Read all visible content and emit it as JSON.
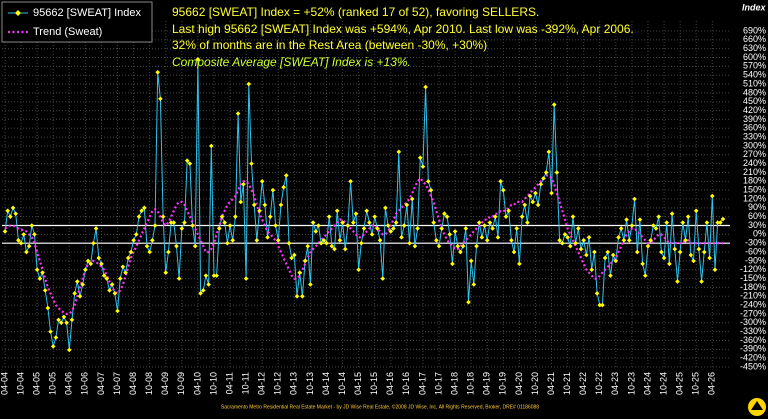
{
  "chart_data": {
    "type": "line",
    "title_lines": [
      "95662 [SWEAT] Index = +52% (ranked 17 of 52), favoring SELLERS.",
      "Last high 95662 [SWEAT] Index was +594%, Apr 2010. Last low was -392%, Apr 2006.",
      "32% of months are in the Rest Area (between -30%, +30%)"
    ],
    "composite_note": "Composite Average [SWEAT] Index is +13%.",
    "y_axis_label": "Index",
    "footer": "Sacramento Metro Residential Real Estate Market - by JD Wise Real Estate, ©2008 JD Wise, Inc, All Rights Reserved, Broker, DRE# 01186088",
    "rest_area": [
      -30,
      30
    ],
    "grid": true,
    "legend": "upper left",
    "categories": [
      "04-04",
      null,
      null,
      null,
      null,
      null,
      "10-04",
      null,
      null,
      null,
      null,
      null,
      "04-05",
      null,
      null,
      null,
      null,
      null,
      "10-05",
      null,
      null,
      null,
      null,
      null,
      "04-06",
      null,
      null,
      null,
      null,
      null,
      "10-06",
      null,
      null,
      null,
      null,
      null,
      "04-07",
      null,
      null,
      null,
      null,
      null,
      "10-07",
      null,
      null,
      null,
      null,
      null,
      "04-08",
      null,
      null,
      null,
      null,
      null,
      "10-08",
      null,
      null,
      null,
      null,
      null,
      "04-09",
      null,
      null,
      null,
      null,
      null,
      "10-09",
      null,
      null,
      null,
      null,
      null,
      "04-10",
      null,
      null,
      null,
      null,
      null,
      "10-10",
      null,
      null,
      null,
      null,
      null,
      "04-11",
      null,
      null,
      null,
      null,
      null,
      "10-11",
      null,
      null,
      null,
      null,
      null,
      "04-12",
      null,
      null,
      null,
      null,
      null,
      "10-12",
      null,
      null,
      null,
      null,
      null,
      "04-13",
      null,
      null,
      null,
      null,
      null,
      "10-13",
      null,
      null,
      null,
      null,
      null,
      "04-14",
      null,
      null,
      null,
      null,
      null,
      "10-14",
      null,
      null,
      null,
      null,
      null,
      "04-15",
      null,
      null,
      null,
      null,
      null,
      "10-15",
      null,
      null,
      null,
      null,
      null,
      "04-16",
      null,
      null,
      null,
      null,
      null,
      "10-16",
      null,
      null,
      null,
      null,
      null,
      "04-17",
      null,
      null,
      null,
      null,
      null,
      "10-17",
      null,
      null,
      null,
      null,
      null,
      "04-18",
      null,
      null,
      null,
      null,
      null,
      "10-18",
      null,
      null,
      null,
      null,
      null,
      "04-19",
      null,
      null,
      null,
      null,
      null,
      "10-19",
      null,
      null,
      null,
      null,
      null,
      "04-20",
      null,
      null,
      null,
      null,
      null,
      "10-20",
      null,
      null,
      null,
      null,
      null,
      "04-21",
      null,
      null,
      null,
      null,
      null,
      "10-21",
      null,
      null,
      null,
      null,
      null,
      "04-22",
      null,
      null,
      null,
      null,
      null,
      "10-22",
      null,
      null,
      null,
      null,
      null,
      "04-23",
      null,
      null,
      null,
      null,
      null,
      "10-23",
      null,
      null,
      null,
      null,
      null,
      "04-24",
      null,
      null,
      null,
      null,
      null,
      "10-24",
      null,
      null,
      null,
      null,
      null,
      "04-25",
      null,
      null,
      null,
      null,
      null,
      "10-25",
      null,
      null,
      null,
      null,
      null,
      "04-26",
      null,
      null,
      null,
      null
    ],
    "series": [
      {
        "name": "95662 [SWEAT] Index",
        "color": "#2fc4ee",
        "marker_color": "#ffff00",
        "values": [
          10,
          80,
          60,
          90,
          70,
          -20,
          -30,
          0,
          -60,
          -40,
          30,
          0,
          -120,
          -150,
          -130,
          -190,
          -250,
          -330,
          -380,
          -350,
          -290,
          -300,
          -280,
          -300,
          -392,
          -290,
          -200,
          -160,
          -210,
          -170,
          -120,
          -90,
          -100,
          -30,
          20,
          -80,
          -100,
          -140,
          -150,
          -190,
          -170,
          -200,
          -260,
          -150,
          -110,
          -130,
          -80,
          -60,
          -20,
          0,
          60,
          80,
          90,
          -40,
          -60,
          -20,
          30,
          550,
          460,
          60,
          -130,
          -60,
          40,
          40,
          -40,
          -150,
          20,
          40,
          250,
          240,
          30,
          -40,
          594,
          -200,
          -190,
          -140,
          -170,
          300,
          -140,
          -140,
          20,
          60,
          40,
          -30,
          30,
          -20,
          60,
          410,
          110,
          170,
          -150,
          510,
          240,
          100,
          -20,
          80,
          180,
          100,
          -10,
          60,
          150,
          30,
          -20,
          100,
          160,
          200,
          -30,
          -80,
          -70,
          -210,
          -130,
          -210,
          -90,
          -40,
          -170,
          40,
          10,
          30,
          -30,
          -20,
          -30,
          60,
          -40,
          -50,
          80,
          -20,
          40,
          -50,
          30,
          180,
          40,
          70,
          -120,
          -30,
          20,
          80,
          40,
          0,
          60,
          20,
          -20,
          -150,
          90,
          30,
          10,
          20,
          40,
          280,
          -10,
          30,
          100,
          -30,
          120,
          -40,
          20,
          260,
          230,
          500,
          180,
          150,
          40,
          -20,
          -40,
          20,
          70,
          60,
          0,
          -100,
          10,
          -40,
          -60,
          -40,
          20,
          -230,
          -90,
          -170,
          -40,
          40,
          -10,
          30,
          -20,
          40,
          20,
          60,
          -10,
          180,
          150,
          60,
          80,
          -20,
          -60,
          20,
          -100,
          60,
          100,
          40,
          130,
          110,
          140,
          100,
          170,
          190,
          210,
          280,
          140,
          440,
          210,
          -20,
          -30,
          0,
          -10,
          -40,
          60,
          -30,
          20,
          -50,
          -20,
          -70,
          -10,
          -120,
          -60,
          -200,
          -240,
          -240,
          -80,
          -60,
          -140,
          -70,
          -90,
          -10,
          20,
          -20,
          50,
          -20,
          30,
          120,
          -60,
          50,
          -100,
          -140,
          -40,
          -20,
          30,
          20,
          60,
          -60,
          -80,
          40,
          -100,
          70,
          -50,
          -160,
          -60,
          40,
          -20,
          60,
          -70,
          -90,
          80,
          -50,
          -160,
          -60,
          40,
          -80,
          130,
          -120,
          40,
          40,
          52
        ]
      },
      {
        "name": "Trend (Sweat)",
        "color": "#ff33ff",
        "dotted": true,
        "values": [
          20,
          25,
          30,
          30,
          25,
          20,
          15,
          15,
          10,
          0,
          -10,
          -30,
          -60,
          -90,
          -120,
          -150,
          -180,
          -200,
          -220,
          -240,
          -250,
          -260,
          -265,
          -270,
          -270,
          -260,
          -240,
          -210,
          -180,
          -150,
          -120,
          -100,
          -90,
          -90,
          -95,
          -100,
          -110,
          -120,
          -140,
          -160,
          -180,
          -195,
          -200,
          -190,
          -170,
          -140,
          -110,
          -80,
          -60,
          -40,
          -20,
          0,
          20,
          40,
          60,
          80,
          85,
          80,
          60,
          40,
          30,
          40,
          60,
          80,
          100,
          110,
          110,
          100,
          80,
          60,
          40,
          20,
          0,
          -20,
          -40,
          -60,
          -60,
          -50,
          -30,
          0,
          30,
          60,
          80,
          100,
          110,
          120,
          130,
          150,
          170,
          180,
          180,
          170,
          150,
          130,
          100,
          70,
          50,
          30,
          10,
          0,
          -10,
          -20,
          -40,
          -60,
          -80,
          -100,
          -120,
          -140,
          -150,
          -150,
          -140,
          -120,
          -100,
          -80,
          -60,
          -50,
          -40,
          -30,
          -20,
          -10,
          0,
          10,
          20,
          30,
          40,
          50,
          50,
          40,
          30,
          20,
          10,
          0,
          -10,
          -10,
          0,
          10,
          20,
          30,
          30,
          20,
          10,
          0,
          0,
          10,
          30,
          50,
          70,
          80,
          90,
          100,
          110,
          120,
          140,
          160,
          180,
          190,
          180,
          170,
          150,
          130,
          110,
          80,
          50,
          20,
          0,
          -20,
          -30,
          -40,
          -50,
          -50,
          -40,
          -30,
          -20,
          -10,
          0,
          10,
          20,
          30,
          40,
          50,
          50,
          60,
          60,
          70,
          70,
          80,
          80,
          80,
          90,
          100,
          100,
          110,
          110,
          110,
          120,
          130,
          140,
          150,
          160,
          170,
          180,
          190,
          200,
          200,
          190,
          170,
          140,
          110,
          80,
          50,
          20,
          0,
          -20,
          -40,
          -60,
          -80,
          -100,
          -120,
          -130,
          -140,
          -150,
          -150,
          -140,
          -130,
          -120,
          -110,
          -100,
          -90,
          -80,
          -60,
          -40,
          -20,
          0,
          10,
          20,
          20,
          10,
          0,
          -10,
          -20,
          -30,
          -30,
          -20,
          -10,
          0,
          0,
          -10,
          -20,
          -30,
          -30,
          -30,
          -30,
          -30,
          -30,
          -20,
          -20,
          -30,
          -30,
          -30,
          -30,
          -30,
          -30,
          -30,
          -30,
          -30,
          -30,
          -30,
          -30,
          -30
        ]
      }
    ],
    "ylim": [
      -450,
      690
    ],
    "yticks": [
      {
        "value": -450,
        "label": "-450%"
      },
      {
        "value": -420,
        "label": "-420%"
      },
      {
        "value": -390,
        "label": "-390%"
      },
      {
        "value": -360,
        "label": "-360%"
      },
      {
        "value": -330,
        "label": "-330%"
      },
      {
        "value": -300,
        "label": "-300%"
      },
      {
        "value": -270,
        "label": "-270%"
      },
      {
        "value": -240,
        "label": "-240%"
      },
      {
        "value": -210,
        "label": "-210%"
      },
      {
        "value": -180,
        "label": "-180%"
      },
      {
        "value": -150,
        "label": "-150%"
      },
      {
        "value": -120,
        "label": "-120%"
      },
      {
        "value": -90,
        "label": "-90%"
      },
      {
        "value": -60,
        "label": "-60%"
      },
      {
        "value": -30,
        "label": "-30%"
      },
      {
        "value": 0,
        "label": "0%"
      },
      {
        "value": 30,
        "label": "30%"
      },
      {
        "value": 60,
        "label": "60%"
      },
      {
        "value": 90,
        "label": "90%"
      },
      {
        "value": 120,
        "label": "120%"
      },
      {
        "value": 150,
        "label": "150%"
      },
      {
        "value": 180,
        "label": "180%"
      },
      {
        "value": 210,
        "label": "210%"
      },
      {
        "value": 240,
        "label": "240%"
      },
      {
        "value": 270,
        "label": "270%"
      },
      {
        "value": 300,
        "label": "300%"
      },
      {
        "value": 330,
        "label": "330%"
      },
      {
        "value": 360,
        "label": "360%"
      },
      {
        "value": 390,
        "label": "390%"
      },
      {
        "value": 420,
        "label": "420%"
      },
      {
        "value": 450,
        "label": "450%"
      },
      {
        "value": 480,
        "label": "480%"
      },
      {
        "value": 510,
        "label": "510%"
      },
      {
        "value": 540,
        "label": "540%"
      },
      {
        "value": 570,
        "label": "570%"
      },
      {
        "value": 600,
        "label": "600%"
      },
      {
        "value": 630,
        "label": "630%"
      },
      {
        "value": 660,
        "label": "660%"
      },
      {
        "value": 690,
        "label": "690%"
      }
    ]
  }
}
